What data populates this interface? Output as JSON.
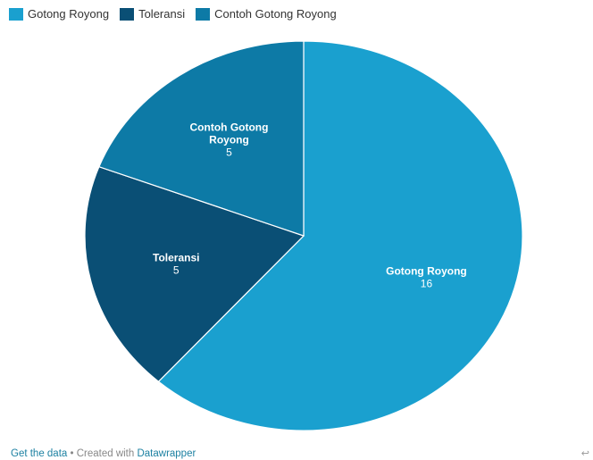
{
  "chart_data": {
    "type": "pie",
    "categories": [
      "Gotong Royong",
      "Toleransi",
      "Contoh Gotong Royong"
    ],
    "values": [
      16,
      5,
      5
    ],
    "colors": [
      "#1aa0cf",
      "#0a4f75",
      "#0d7aa6"
    ],
    "label_lines": [
      [
        "Gotong Royong"
      ],
      [
        "Toleransi"
      ],
      [
        "Contoh Gotong",
        "Royong"
      ]
    ],
    "legend_position": "top-left",
    "start_angle": "12 o'clock",
    "direction": "clockwise"
  },
  "legend": {
    "items": [
      {
        "label": "Gotong Royong",
        "color": "#1aa0cf"
      },
      {
        "label": "Toleransi",
        "color": "#0a4f75"
      },
      {
        "label": "Contoh Gotong Royong",
        "color": "#0d7aa6"
      }
    ]
  },
  "footer": {
    "get_data": "Get the data",
    "separator": " • Created with ",
    "datawrapper": "Datawrapper"
  },
  "corner_icon": "arrow-left-icon"
}
